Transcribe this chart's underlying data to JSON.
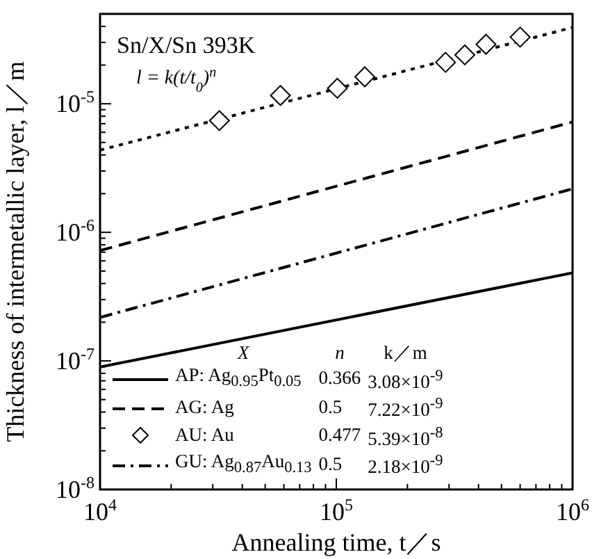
{
  "chart_data": {
    "type": "line",
    "title": "Sn/X/Sn   393K",
    "subtitle": "l = k(t/t$_{0}$)$^{n}$",
    "xlabel": "Annealing time, t／s",
    "ylabel": "Thickness of intermetallic layer, l／m",
    "log": "xy",
    "xlim": [
      10000,
      1000000
    ],
    "ylim": [
      1e-08,
      5e-05
    ],
    "xticks": [
      {
        "value": 10000,
        "label": "10$^{4}$"
      },
      {
        "value": 20000,
        "label": null
      },
      {
        "value": 30000,
        "label": null
      },
      {
        "value": 40000,
        "label": null
      },
      {
        "value": 50000,
        "label": null
      },
      {
        "value": 60000,
        "label": null
      },
      {
        "value": 70000,
        "label": null
      },
      {
        "value": 80000,
        "label": null
      },
      {
        "value": 90000,
        "label": null
      },
      {
        "value": 100000,
        "label": "10$^{5}$"
      },
      {
        "value": 200000,
        "label": null
      },
      {
        "value": 300000,
        "label": null
      },
      {
        "value": 400000,
        "label": null
      },
      {
        "value": 500000,
        "label": null
      },
      {
        "value": 600000,
        "label": null
      },
      {
        "value": 700000,
        "label": null
      },
      {
        "value": 800000,
        "label": null
      },
      {
        "value": 900000,
        "label": null
      },
      {
        "value": 1000000,
        "label": "10$^{6}$"
      }
    ],
    "yticks": [
      {
        "value": 1e-08,
        "label": "10$^{-8}$"
      },
      {
        "value": 2e-08,
        "label": null
      },
      {
        "value": 3e-08,
        "label": null
      },
      {
        "value": 4e-08,
        "label": null
      },
      {
        "value": 5e-08,
        "label": null
      },
      {
        "value": 6e-08,
        "label": null
      },
      {
        "value": 7e-08,
        "label": null
      },
      {
        "value": 8e-08,
        "label": null
      },
      {
        "value": 9e-08,
        "label": null
      },
      {
        "value": 1e-07,
        "label": "10$^{-7}$"
      },
      {
        "value": 2e-07,
        "label": null
      },
      {
        "value": 3e-07,
        "label": null
      },
      {
        "value": 4e-07,
        "label": null
      },
      {
        "value": 5e-07,
        "label": null
      },
      {
        "value": 6e-07,
        "label": null
      },
      {
        "value": 7e-07,
        "label": null
      },
      {
        "value": 8e-07,
        "label": null
      },
      {
        "value": 9e-07,
        "label": null
      },
      {
        "value": 1e-06,
        "label": "10$^{-6}$"
      },
      {
        "value": 2e-06,
        "label": null
      },
      {
        "value": 3e-06,
        "label": null
      },
      {
        "value": 4e-06,
        "label": null
      },
      {
        "value": 5e-06,
        "label": null
      },
      {
        "value": 6e-06,
        "label": null
      },
      {
        "value": 7e-06,
        "label": null
      },
      {
        "value": 8e-06,
        "label": null
      },
      {
        "value": 9e-06,
        "label": null
      },
      {
        "value": 1e-05,
        "label": "10$^{-5}$"
      },
      {
        "value": 2e-05,
        "label": null
      },
      {
        "value": 3e-05,
        "label": null
      },
      {
        "value": 4e-05,
        "label": null
      }
    ],
    "legend": "bottom",
    "series": [
      {
        "name": "AP: Ag$_{0.95}$Pt$_{0.05}$",
        "type": "line",
        "color": "#000000",
        "line_style": "solid",
        "marker": "none",
        "x": [
          10000,
          1000000
        ],
        "values": [
          8.96e-08,
          4.84e-07
        ]
      },
      {
        "name": "AG: Ag",
        "type": "line",
        "color": "#000000",
        "line_style": "dashed",
        "marker": "none",
        "x": [
          10000,
          1000000
        ],
        "values": [
          7.22e-07,
          7.22e-06
        ]
      },
      {
        "name": "AU: Au",
        "type": "scatter",
        "color": "#000000",
        "marker": "diamond",
        "x": [
          32000,
          58000,
          101000,
          132000,
          290000,
          350000,
          430000,
          600000
        ],
        "values": [
          7.4e-06,
          1.16e-05,
          1.32e-05,
          1.62e-05,
          2.1e-05,
          2.4e-05,
          2.9e-05,
          3.3e-05
        ]
      },
      {
        "type": "line",
        "color": "#000000",
        "line_style": "dotted",
        "marker": "none",
        "x": [
          10000,
          1000000
        ],
        "values": [
          4.36e-06,
          3.92e-05
        ]
      },
      {
        "name": "GU: Ag$_{0.87}$Au$_{0.13}$",
        "type": "line",
        "color": "#000000",
        "line_style": "dashdot",
        "marker": "none",
        "x": [
          10000,
          1000000
        ],
        "values": [
          2.18e-07,
          2.18e-06
        ]
      }
    ],
    "annotations": [
      "X",
      "n",
      "k／m",
      "0.366",
      "3.08×10$^{-9}$",
      "0.5",
      "7.22×10$^{-9}$",
      "0.477",
      "5.39×10$^{-8}$",
      "0.5",
      "2.18×10$^{-9}$"
    ]
  }
}
